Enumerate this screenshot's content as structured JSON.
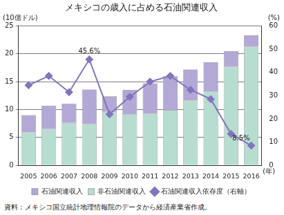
{
  "chart_data": {
    "type": "bar",
    "title": "メキシコの歳入に占める石油関連収入",
    "y_label": "(10億ドル)",
    "y2_label": "(%)",
    "x_label": "(年)",
    "categories": [
      "2005",
      "2006",
      "2007",
      "2008",
      "2009",
      "2010",
      "2011",
      "2012",
      "2013",
      "2014",
      "2015",
      "2016"
    ],
    "stacked": true,
    "grid": true,
    "legend": "bottom",
    "series": [
      {
        "name": "石油関連収入",
        "color": "#b3a8d6",
        "values": [
          3.1,
          4.2,
          3.5,
          6.2,
          2.7,
          4.3,
          5.4,
          6.1,
          5.6,
          5.2,
          2.8,
          2.0
        ]
      },
      {
        "name": "非石油関連収入",
        "color": "#b7ddd0",
        "values": [
          5.9,
          6.5,
          7.6,
          7.4,
          9.7,
          9.2,
          9.3,
          9.9,
          11.6,
          13.3,
          17.7,
          21.3
        ]
      },
      {
        "name": "石油関連収入依存度（右軸）",
        "type": "line",
        "color": "#8474bd",
        "marker": "diamond",
        "axis": "y2",
        "values": [
          34.5,
          38.5,
          31.5,
          45.6,
          22.0,
          29.5,
          36.0,
          38.5,
          32.5,
          28.5,
          13.5,
          8.5
        ]
      }
    ],
    "ylim": [
      0,
      25
    ],
    "yticks": [
      0,
      5,
      10,
      15,
      20,
      25
    ],
    "y2lim": [
      0,
      60
    ],
    "y2ticks": [
      0,
      10,
      20,
      30,
      40,
      50,
      60
    ],
    "annotations": [
      {
        "text": "45.6%",
        "x": "2008",
        "y": 45.6,
        "axis": "y2"
      },
      {
        "text": "8.5%",
        "x": "2016",
        "y": 8.5,
        "axis": "y2"
      }
    ],
    "source": "資料：メキシコ国立統計地理情報院のデータから経済産業省作成。"
  }
}
